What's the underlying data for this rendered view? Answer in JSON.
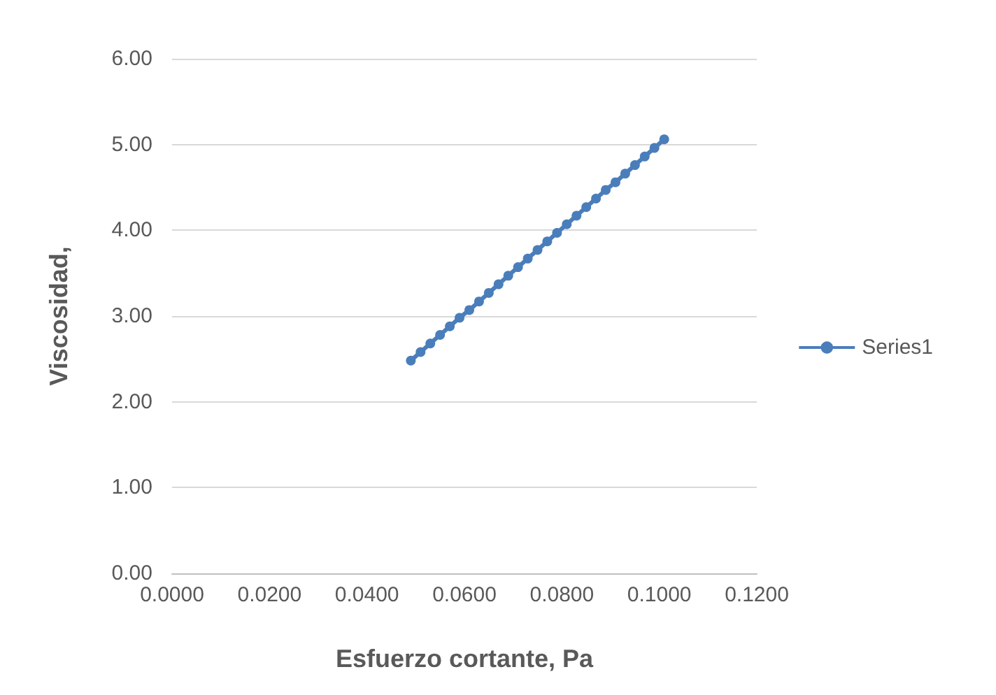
{
  "chart_data": {
    "type": "line",
    "xlabel": "Esfuerzo cortante, Pa",
    "ylabel": "Viscosidad,",
    "x": [
      0.049,
      0.051,
      0.053,
      0.055,
      0.057,
      0.059,
      0.061,
      0.063,
      0.065,
      0.067,
      0.069,
      0.071,
      0.073,
      0.075,
      0.077,
      0.079,
      0.081,
      0.083,
      0.085,
      0.087,
      0.089,
      0.091,
      0.093,
      0.095,
      0.097,
      0.099,
      0.101
    ],
    "series": [
      {
        "name": "Series1",
        "color": "#4a7ebb",
        "values": [
          2.48,
          2.58,
          2.68,
          2.78,
          2.88,
          2.98,
          3.07,
          3.17,
          3.27,
          3.37,
          3.47,
          3.57,
          3.67,
          3.77,
          3.87,
          3.97,
          4.07,
          4.17,
          4.27,
          4.37,
          4.47,
          4.56,
          4.66,
          4.76,
          4.86,
          4.96,
          5.06
        ]
      }
    ],
    "xlim": [
      0,
      0.12
    ],
    "xticks": [
      {
        "value": 0,
        "label": "0.0000"
      },
      {
        "value": 0.02,
        "label": "0.0200"
      },
      {
        "value": 0.04,
        "label": "0.0400"
      },
      {
        "value": 0.06,
        "label": "0.0600"
      },
      {
        "value": 0.08,
        "label": "0.0800"
      },
      {
        "value": 0.1,
        "label": "0.1000"
      },
      {
        "value": 0.12,
        "label": "0.1200"
      }
    ],
    "ylim": [
      0,
      6
    ],
    "yticks": [
      {
        "value": 0,
        "label": "0.00"
      },
      {
        "value": 1,
        "label": "1.00"
      },
      {
        "value": 2,
        "label": "2.00"
      },
      {
        "value": 3,
        "label": "3.00"
      },
      {
        "value": 4,
        "label": "4.00"
      },
      {
        "value": 5,
        "label": "5.00"
      },
      {
        "value": 6,
        "label": "6.00"
      }
    ],
    "grid": "y",
    "legend": "right",
    "marker": "circle",
    "line_style": "solid"
  }
}
